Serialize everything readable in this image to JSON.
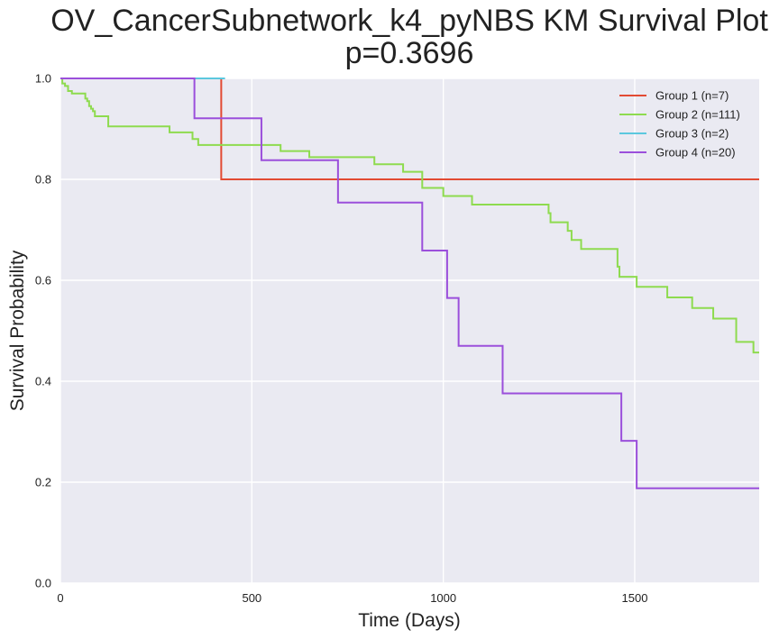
{
  "chart_data": {
    "type": "line",
    "subtype": "kaplan-meier step plot",
    "title": "OV_CancerSubnetwork_k4_pyNBS KM Survival Plot",
    "subtitle": "p=0.3696",
    "xlabel": "Time (Days)",
    "ylabel": "Survival Probability",
    "xlim": [
      0,
      1825
    ],
    "ylim": [
      0,
      1.0
    ],
    "xticks": [
      0,
      500,
      1000,
      1500
    ],
    "xtick_labels": [
      "0",
      "500",
      "1000",
      "1500"
    ],
    "yticks": [
      0.0,
      0.2,
      0.4,
      0.6,
      0.8,
      1.0
    ],
    "ytick_labels": [
      "0.0",
      "0.2",
      "0.4",
      "0.6",
      "0.8",
      "1.0"
    ],
    "grid": true,
    "background": "#EAEAF2",
    "legend_position": "top-right",
    "series": [
      {
        "name": "Group 1 (n=7)",
        "color": "#E24A33",
        "x": [
          0,
          420,
          1825
        ],
        "y": [
          1.0,
          0.8,
          0.8
        ]
      },
      {
        "name": "Group 2 (n=111)",
        "color": "#8EDB4F",
        "x": [
          0,
          5,
          12,
          20,
          30,
          45,
          65,
          70,
          75,
          80,
          85,
          90,
          100,
          125,
          285,
          345,
          360,
          575,
          650,
          820,
          895,
          945,
          1000,
          1075,
          1260,
          1275,
          1280,
          1325,
          1335,
          1360,
          1455,
          1460,
          1505,
          1585,
          1650,
          1705,
          1765,
          1810,
          1825
        ],
        "y": [
          1.0,
          0.99,
          0.985,
          0.975,
          0.97,
          0.97,
          0.96,
          0.955,
          0.945,
          0.94,
          0.935,
          0.925,
          0.925,
          0.905,
          0.893,
          0.88,
          0.868,
          0.856,
          0.844,
          0.83,
          0.815,
          0.783,
          0.767,
          0.75,
          0.75,
          0.733,
          0.715,
          0.698,
          0.68,
          0.662,
          0.627,
          0.607,
          0.587,
          0.566,
          0.545,
          0.524,
          0.478,
          0.457,
          0.457
        ]
      },
      {
        "name": "Group 3 (n=2)",
        "color": "#5BC8DE",
        "x": [
          0,
          430
        ],
        "y": [
          1.0,
          1.0
        ]
      },
      {
        "name": "Group 4 (n=20)",
        "color": "#9B4FDB",
        "x": [
          0,
          350,
          525,
          725,
          945,
          1010,
          1040,
          1155,
          1465,
          1505,
          1825
        ],
        "y": [
          1.0,
          0.921,
          0.838,
          0.754,
          0.659,
          0.565,
          0.47,
          0.376,
          0.282,
          0.188,
          0.188
        ]
      }
    ]
  }
}
